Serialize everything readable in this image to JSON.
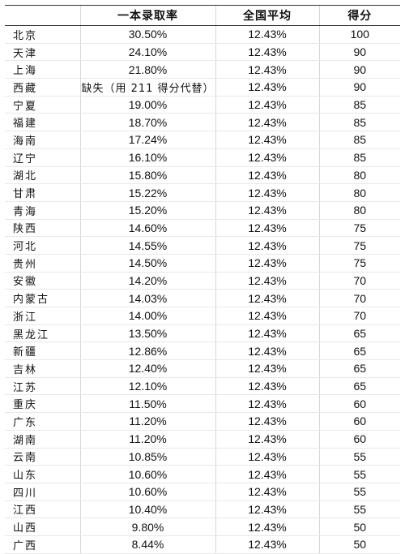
{
  "table": {
    "headers": [
      "",
      "一本录取率",
      "全国平均",
      "得分"
    ],
    "rows": [
      [
        "北京",
        "30.50%",
        "12.43%",
        "100"
      ],
      [
        "天津",
        "24.10%",
        "12.43%",
        "90"
      ],
      [
        "上海",
        "21.80%",
        "12.43%",
        "90"
      ],
      [
        "西藏",
        "缺失（用 211 得分代替）",
        "12.43%",
        "90"
      ],
      [
        "宁夏",
        "19.00%",
        "12.43%",
        "85"
      ],
      [
        "福建",
        "18.70%",
        "12.43%",
        "85"
      ],
      [
        "海南",
        "17.24%",
        "12.43%",
        "85"
      ],
      [
        "辽宁",
        "16.10%",
        "12.43%",
        "85"
      ],
      [
        "湖北",
        "15.80%",
        "12.43%",
        "80"
      ],
      [
        "甘肃",
        "15.22%",
        "12.43%",
        "80"
      ],
      [
        "青海",
        "15.20%",
        "12.43%",
        "80"
      ],
      [
        "陕西",
        "14.60%",
        "12.43%",
        "75"
      ],
      [
        "河北",
        "14.55%",
        "12.43%",
        "75"
      ],
      [
        "贵州",
        "14.50%",
        "12.43%",
        "75"
      ],
      [
        "安徽",
        "14.20%",
        "12.43%",
        "70"
      ],
      [
        "内蒙古",
        "14.03%",
        "12.43%",
        "70"
      ],
      [
        "浙江",
        "14.00%",
        "12.43%",
        "70"
      ],
      [
        "黑龙江",
        "13.50%",
        "12.43%",
        "65"
      ],
      [
        "新疆",
        "12.86%",
        "12.43%",
        "65"
      ],
      [
        "吉林",
        "12.40%",
        "12.43%",
        "65"
      ],
      [
        "江苏",
        "12.10%",
        "12.43%",
        "65"
      ],
      [
        "重庆",
        "11.50%",
        "12.43%",
        "60"
      ],
      [
        "广东",
        "11.20%",
        "12.43%",
        "60"
      ],
      [
        "湖南",
        "11.20%",
        "12.43%",
        "60"
      ],
      [
        "云南",
        "10.85%",
        "12.43%",
        "55"
      ],
      [
        "山东",
        "10.60%",
        "12.43%",
        "55"
      ],
      [
        "四川",
        "10.60%",
        "12.43%",
        "55"
      ],
      [
        "江西",
        "10.40%",
        "12.43%",
        "55"
      ],
      [
        "山西",
        "9.80%",
        "12.43%",
        "50"
      ],
      [
        "广西",
        "8.44%",
        "12.43%",
        "50"
      ]
    ]
  }
}
